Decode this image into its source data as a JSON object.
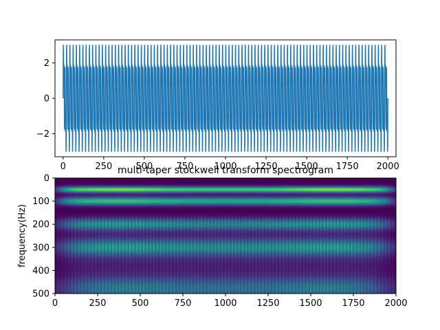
{
  "chart_data": [
    {
      "type": "line",
      "title": "",
      "xlabel": "",
      "ylabel": "",
      "xlim": [
        -50,
        2050
      ],
      "ylim": [
        -3.3,
        3.3
      ],
      "xticks": [
        0,
        250,
        500,
        750,
        1000,
        1250,
        1500,
        1750,
        2000
      ],
      "yticks": [
        2,
        0,
        -2
      ],
      "series": [
        {
          "color": "#1f77b4",
          "x_range": [
            0,
            2000
          ],
          "components": [
            {
              "freq_hz": 50,
              "amplitude": 1.0
            },
            {
              "freq_hz": 100,
              "amplitude": 1.0
            },
            {
              "freq_hz": 200,
              "amplitude": 1.0
            }
          ],
          "sample_rate_hz": 1000,
          "y_min": -3.0,
          "y_max": 3.0
        }
      ]
    },
    {
      "type": "heatmap",
      "title": "multi-taper stockwell transform spectrogram",
      "xlabel": "",
      "ylabel": "frequency(Hz)",
      "xlim": [
        0,
        2000
      ],
      "ylim": [
        500,
        0
      ],
      "xticks": [
        0,
        250,
        500,
        750,
        1000,
        1250,
        1500,
        1750,
        2000
      ],
      "yticks": [
        0,
        100,
        200,
        300,
        400,
        500
      ],
      "colormap": "viridis",
      "bands": [
        {
          "freq_hz": 50,
          "intensity": 0.85
        },
        {
          "freq_hz": 100,
          "intensity": 0.7
        },
        {
          "freq_hz": 200,
          "intensity": 0.6
        },
        {
          "freq_hz": 300,
          "intensity": 0.55
        },
        {
          "freq_hz": 480,
          "intensity": 0.5
        }
      ]
    }
  ]
}
